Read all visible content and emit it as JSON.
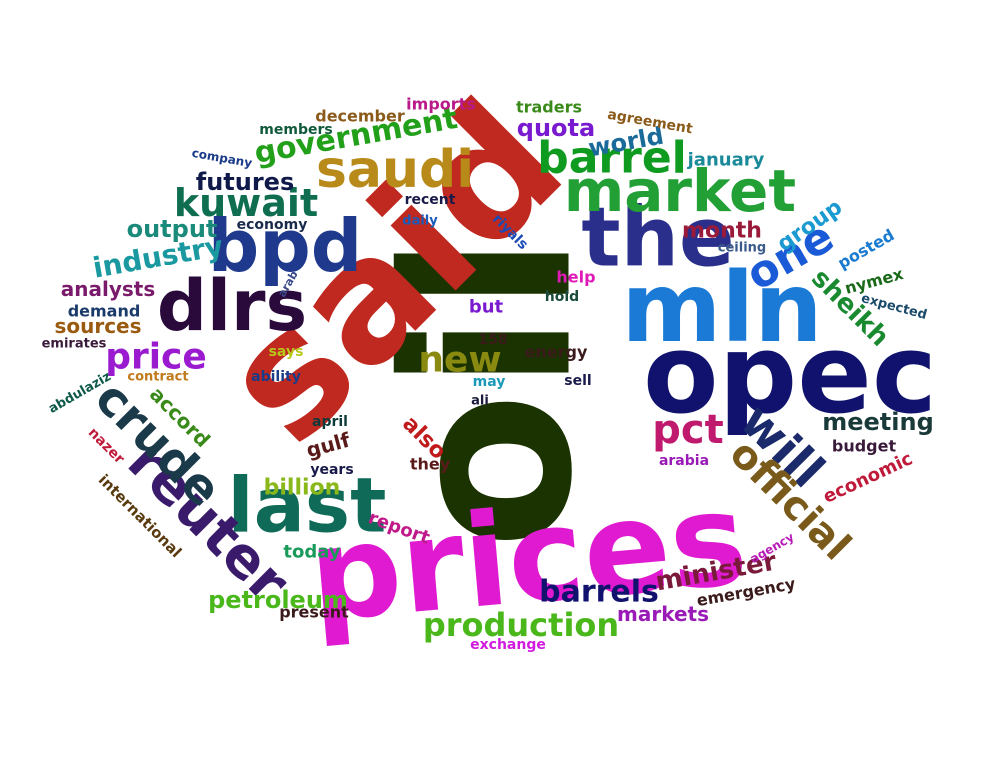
{
  "cloud": {
    "words": [
      {
        "text": "oil",
        "color": "#1a3300"
      },
      {
        "text": "said",
        "color": "#c0291f"
      },
      {
        "text": "prices",
        "color": "#e01ad0"
      },
      {
        "text": "opec",
        "color": "#10126e"
      },
      {
        "text": "mln",
        "color": "#1a7ad6"
      },
      {
        "text": "the",
        "color": "#2a2f8c"
      },
      {
        "text": "bpd",
        "color": "#1f3a8c"
      },
      {
        "text": "dlrs",
        "color": "#2a0a3a"
      },
      {
        "text": "last",
        "color": "#0f6b58"
      },
      {
        "text": "reuter",
        "color": "#3a1a6b"
      },
      {
        "text": "crude",
        "color": "#1a3a4a"
      },
      {
        "text": "market",
        "color": "#22a036"
      },
      {
        "text": "saudi",
        "color": "#b88a1a"
      },
      {
        "text": "barrel",
        "color": "#0f9a20"
      },
      {
        "text": "kuwait",
        "color": "#0f6e50"
      },
      {
        "text": "government",
        "color": "#22a01a"
      },
      {
        "text": "one",
        "color": "#1a5ad6"
      },
      {
        "text": "will",
        "color": "#1a2a6b"
      },
      {
        "text": "official",
        "color": "#7a5a1a"
      },
      {
        "text": "pct",
        "color": "#c01a6e"
      },
      {
        "text": "new",
        "color": "#8a8a10"
      },
      {
        "text": "price",
        "color": "#9a1ad0"
      },
      {
        "text": "production",
        "color": "#4ab81a"
      },
      {
        "text": "barrels",
        "color": "#10126e"
      },
      {
        "text": "minister",
        "color": "#7a1a3a"
      },
      {
        "text": "meeting",
        "color": "#1a3a3a"
      },
      {
        "text": "sheikh",
        "color": "#1a8a30"
      },
      {
        "text": "industry",
        "color": "#1a9aa0"
      },
      {
        "text": "output",
        "color": "#1a8a7a"
      },
      {
        "text": "futures",
        "color": "#101a4a"
      },
      {
        "text": "quota",
        "color": "#7a1ad0"
      },
      {
        "text": "world",
        "color": "#1a6a9a"
      },
      {
        "text": "group",
        "color": "#1a9ad0"
      },
      {
        "text": "month",
        "color": "#9a1a3a"
      },
      {
        "text": "petroleum",
        "color": "#4ab81a"
      },
      {
        "text": "billion",
        "color": "#8ab81a"
      },
      {
        "text": "also",
        "color": "#c01a1a"
      },
      {
        "text": "markets",
        "color": "#9a1ab8"
      },
      {
        "text": "sources",
        "color": "#9a5a10"
      },
      {
        "text": "analysts",
        "color": "#7a1a6a"
      },
      {
        "text": "accord",
        "color": "#3a8a1a"
      },
      {
        "text": "gulf",
        "color": "#5a1a1a"
      },
      {
        "text": "report",
        "color": "#c01a8a"
      },
      {
        "text": "today",
        "color": "#1a9a5a"
      },
      {
        "text": "economic",
        "color": "#c01a3a"
      },
      {
        "text": "january",
        "color": "#1a8a9a"
      },
      {
        "text": "emergency",
        "color": "#3a1a1a"
      },
      {
        "text": "energy",
        "color": "#3a1a1a"
      },
      {
        "text": "posted",
        "color": "#1a7ad0"
      },
      {
        "text": "nymex",
        "color": "#1a6a1a"
      },
      {
        "text": "december",
        "color": "#8a5a1a"
      },
      {
        "text": "imports",
        "color": "#b81a8a"
      },
      {
        "text": "traders",
        "color": "#3a8a1a"
      },
      {
        "text": "agreement",
        "color": "#8a5a1a"
      },
      {
        "text": "members",
        "color": "#0f5a3a"
      },
      {
        "text": "company",
        "color": "#1a3a8a"
      },
      {
        "text": "economy",
        "color": "#1a2a4a"
      },
      {
        "text": "recent",
        "color": "#1a1a4a"
      },
      {
        "text": "daily",
        "color": "#1a5ab8"
      },
      {
        "text": "riyals",
        "color": "#1a4ab8"
      },
      {
        "text": "demand",
        "color": "#1a3a6a"
      },
      {
        "text": "emirates",
        "color": "#3a1a3a"
      },
      {
        "text": "abdulaziz",
        "color": "#0f5a4a"
      },
      {
        "text": "contract",
        "color": "#c07a1a"
      },
      {
        "text": "ability",
        "color": "#1a3a8a"
      },
      {
        "text": "says",
        "color": "#b8c81a"
      },
      {
        "text": "nazer",
        "color": "#c01a3a"
      },
      {
        "text": "international",
        "color": "#5a3a0f"
      },
      {
        "text": "april",
        "color": "#0f3a3a"
      },
      {
        "text": "years",
        "color": "#1a1a4a"
      },
      {
        "text": "they",
        "color": "#5a1a1a"
      },
      {
        "text": "may",
        "color": "#1a9ab8"
      },
      {
        "text": "ali",
        "color": "#1a1a3a"
      },
      {
        "text": "sell",
        "color": "#1a1a4a"
      },
      {
        "text": "but",
        "color": "#7a1ad0"
      },
      {
        "text": "158",
        "color": "#3a1a1a"
      },
      {
        "text": "hold",
        "color": "#1a4a3a"
      },
      {
        "text": "help",
        "color": "#e01ab8"
      },
      {
        "text": "ceiling",
        "color": "#3a5a8a"
      },
      {
        "text": "expected",
        "color": "#1a4a6a"
      },
      {
        "text": "arabia",
        "color": "#9a1ab8"
      },
      {
        "text": "budget",
        "color": "#3a1a3a"
      },
      {
        "text": "agency",
        "color": "#b81ab8"
      },
      {
        "text": "present",
        "color": "#3a1a1a"
      },
      {
        "text": "exchange",
        "color": "#d01ae0"
      },
      {
        "text": "arab",
        "color": "#3a4a8a"
      }
    ]
  }
}
